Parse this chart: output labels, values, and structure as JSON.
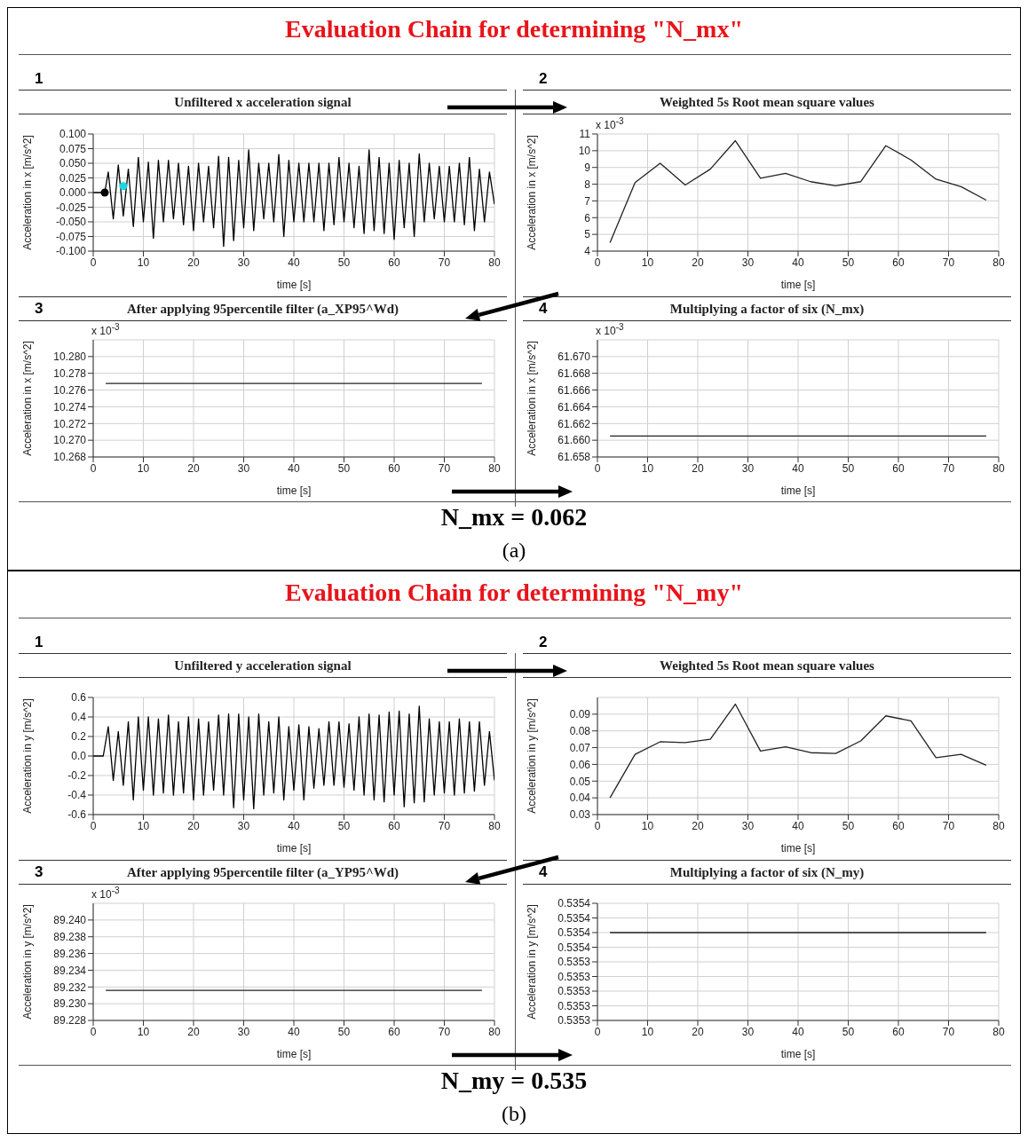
{
  "chart_data": [
    {
      "type": "line",
      "title": "Evaluation Chain for determining \"N_mx\"",
      "subtitle": "Unfiltered x acceleration signal",
      "xlabel": "time [s]",
      "ylabel": "Acceleration in x [m/s^2]",
      "annotations": [
        "1"
      ],
      "grid": true,
      "xlim": [
        0,
        80
      ],
      "xticks": [
        0,
        10,
        20,
        30,
        40,
        50,
        60,
        70,
        80
      ],
      "ylim": [
        -0.1,
        0.1
      ],
      "yticks": [
        {
          "value": -0.1,
          "label": "-0.100"
        },
        {
          "value": -0.075,
          "label": "-0.075"
        },
        {
          "value": -0.05,
          "label": "-0.050"
        },
        {
          "value": -0.025,
          "label": "-0.025"
        },
        {
          "value": 0,
          "label": "0.000"
        },
        {
          "value": 0.025,
          "label": "0.025"
        },
        {
          "value": 0.05,
          "label": "0.050"
        },
        {
          "value": 0.075,
          "label": "0.075"
        },
        {
          "value": 0.1,
          "label": "0.100"
        }
      ],
      "x": [
        0,
        2.3,
        3,
        4,
        5,
        6,
        7,
        8,
        9,
        10,
        11,
        12,
        13,
        14,
        15,
        16,
        17,
        18,
        19,
        20,
        21,
        22,
        23,
        24,
        25,
        26,
        27,
        28,
        29,
        30,
        31,
        32,
        33,
        34,
        35,
        36,
        37,
        38,
        39,
        40,
        41,
        42,
        43,
        44,
        45,
        46,
        47,
        48,
        49,
        50,
        51,
        52,
        53,
        54,
        55,
        56,
        57,
        58,
        59,
        60,
        61,
        62,
        63,
        64,
        65,
        66,
        67,
        68,
        69,
        70,
        71,
        72,
        73,
        74,
        75,
        76,
        77,
        78,
        79,
        80
      ],
      "series": [
        {
          "color": "#000000",
          "values": [
            0,
            0,
            0.035,
            -0.045,
            0.047,
            -0.04,
            0.04,
            -0.058,
            0.06,
            -0.05,
            0.052,
            -0.078,
            0.055,
            -0.05,
            0.055,
            -0.045,
            0.05,
            -0.055,
            0.045,
            -0.065,
            0.05,
            -0.05,
            0.045,
            -0.06,
            0.062,
            -0.092,
            0.06,
            -0.082,
            0.055,
            -0.06,
            0.073,
            -0.065,
            0.05,
            -0.045,
            0.05,
            -0.05,
            0.065,
            -0.075,
            0.055,
            -0.05,
            0.05,
            -0.05,
            0.05,
            -0.05,
            0.05,
            -0.065,
            0.05,
            -0.055,
            0.06,
            -0.05,
            0.05,
            -0.06,
            0.045,
            -0.07,
            0.073,
            -0.065,
            0.06,
            -0.07,
            0.05,
            -0.08,
            0.055,
            -0.06,
            0.05,
            -0.075,
            0.066,
            -0.05,
            0.05,
            -0.045,
            0.045,
            -0.05,
            0.045,
            -0.05,
            0.05,
            -0.055,
            0.06,
            -0.065,
            0.04,
            -0.05,
            0.035,
            -0.02
          ]
        },
        {
          "type": "scatter",
          "color": "#000000",
          "x": [
            2.3
          ],
          "values": [
            0
          ]
        },
        {
          "type": "scatter",
          "color": "#1ad8e0",
          "x": [
            6
          ],
          "values": [
            0.011
          ]
        }
      ]
    },
    {
      "type": "line",
      "subtitle": "Weighted 5s Root mean square values",
      "xlabel": "time [s]",
      "ylabel": "Acceleration in x [m/s^2]",
      "annotations": [
        "2",
        "x 10$^{-3}$"
      ],
      "grid": true,
      "xlim": [
        0,
        80
      ],
      "xticks": [
        0,
        10,
        20,
        30,
        40,
        50,
        60,
        70,
        80
      ],
      "ylim": [
        4,
        11
      ],
      "yticks": [
        4,
        5,
        6,
        7,
        8,
        9,
        10,
        11
      ],
      "x": [
        2.5,
        7.5,
        12.5,
        17.5,
        22.5,
        27.5,
        32.5,
        37.5,
        42.5,
        47.5,
        52.5,
        57.5,
        62.5,
        67.5,
        72.5,
        77.5
      ],
      "series": [
        {
          "color": "#222222",
          "values": [
            4.5,
            8.1,
            9.25,
            7.95,
            8.9,
            10.6,
            8.35,
            8.65,
            8.15,
            7.9,
            8.15,
            10.3,
            9.45,
            8.3,
            7.85,
            7.05
          ]
        }
      ]
    },
    {
      "type": "line",
      "subtitle": "After applying 95percentile filter (a_XP95^Wd)",
      "xlabel": "time [s]",
      "ylabel": "Acceleration in x [m/s^2]",
      "annotations": [
        "3",
        "x 10$^{-3}$",
        "N_mx = 0.062",
        "(a)"
      ],
      "grid": true,
      "xlim": [
        0,
        80
      ],
      "xticks": [
        0,
        10,
        20,
        30,
        40,
        50,
        60,
        70,
        80
      ],
      "ylim": [
        10.268,
        10.282
      ],
      "yticks": [
        {
          "value": 10.268,
          "label": "10.268"
        },
        {
          "value": 10.27,
          "label": "10.270"
        },
        {
          "value": 10.272,
          "label": "10.272"
        },
        {
          "value": 10.274,
          "label": "10.274"
        },
        {
          "value": 10.276,
          "label": "10.276"
        },
        {
          "value": 10.278,
          "label": "10.278"
        },
        {
          "value": 10.28,
          "label": "10.280"
        }
      ],
      "x": [
        2.5,
        77.5
      ],
      "series": [
        {
          "color": "#222222",
          "values": [
            10.2768,
            10.2768
          ]
        }
      ]
    },
    {
      "type": "line",
      "subtitle": "Multiplying a factor of six (N_mx)",
      "xlabel": "time [s]",
      "ylabel": "Acceleration in x [m/s^2]",
      "annotations": [
        "4",
        "x 10$^{-3}$"
      ],
      "grid": true,
      "xlim": [
        0,
        80
      ],
      "xticks": [
        0,
        10,
        20,
        30,
        40,
        50,
        60,
        70,
        80
      ],
      "ylim": [
        61.658,
        61.672
      ],
      "yticks": [
        {
          "value": 61.658,
          "label": "61.658"
        },
        {
          "value": 61.66,
          "label": "61.660"
        },
        {
          "value": 61.662,
          "label": "61.662"
        },
        {
          "value": 61.664,
          "label": "61.664"
        },
        {
          "value": 61.666,
          "label": "61.666"
        },
        {
          "value": 61.668,
          "label": "61.668"
        },
        {
          "value": 61.67,
          "label": "61.670"
        }
      ],
      "x": [
        2.5,
        77.5
      ],
      "series": [
        {
          "color": "#222222",
          "values": [
            61.6605,
            61.6605
          ]
        }
      ]
    },
    {
      "type": "line",
      "title": "Evaluation Chain for determining \"N_my\"",
      "subtitle": "Unfiltered y acceleration signal",
      "xlabel": "time [s]",
      "ylabel": "Acceleration in y [m/s^2]",
      "annotations": [
        "1"
      ],
      "grid": true,
      "xlim": [
        0,
        80
      ],
      "xticks": [
        0,
        10,
        20,
        30,
        40,
        50,
        60,
        70,
        80
      ],
      "ylim": [
        -0.6,
        0.6
      ],
      "yticks": [
        {
          "value": -0.6,
          "label": "-0.6"
        },
        {
          "value": -0.4,
          "label": "-0.4"
        },
        {
          "value": -0.2,
          "label": "-0.2"
        },
        {
          "value": 0,
          "label": "0.0"
        },
        {
          "value": 0.2,
          "label": "0.2"
        },
        {
          "value": 0.4,
          "label": "0.4"
        },
        {
          "value": 0.6,
          "label": "0.6"
        }
      ],
      "x": [
        0,
        2,
        3,
        4,
        5,
        6,
        7,
        8,
        9,
        10,
        11,
        12,
        13,
        14,
        15,
        16,
        17,
        18,
        19,
        20,
        21,
        22,
        23,
        24,
        25,
        26,
        27,
        28,
        29,
        30,
        31,
        32,
        33,
        34,
        35,
        36,
        37,
        38,
        39,
        40,
        41,
        42,
        43,
        44,
        45,
        46,
        47,
        48,
        49,
        50,
        51,
        52,
        53,
        54,
        55,
        56,
        57,
        58,
        59,
        60,
        61,
        62,
        63,
        64,
        65,
        66,
        67,
        68,
        69,
        70,
        71,
        72,
        73,
        74,
        75,
        76,
        77,
        78,
        79,
        80
      ],
      "series": [
        {
          "color": "#000000",
          "values": [
            0,
            0,
            0.3,
            -0.25,
            0.25,
            -0.3,
            0.35,
            -0.45,
            0.4,
            -0.35,
            0.4,
            -0.4,
            0.38,
            -0.38,
            0.42,
            -0.4,
            0.35,
            -0.38,
            0.4,
            -0.45,
            0.38,
            -0.4,
            0.35,
            -0.35,
            0.42,
            -0.4,
            0.43,
            -0.53,
            0.43,
            -0.45,
            0.4,
            -0.54,
            0.43,
            -0.4,
            0.35,
            -0.38,
            0.4,
            -0.45,
            0.3,
            -0.35,
            0.32,
            -0.45,
            0.3,
            -0.33,
            0.28,
            -0.3,
            0.35,
            -0.3,
            0.35,
            -0.32,
            0.33,
            -0.35,
            0.4,
            -0.4,
            0.43,
            -0.45,
            0.42,
            -0.47,
            0.45,
            -0.4,
            0.46,
            -0.52,
            0.43,
            -0.48,
            0.51,
            -0.47,
            0.38,
            -0.4,
            0.35,
            -0.38,
            0.35,
            -0.4,
            0.38,
            -0.38,
            0.35,
            -0.36,
            0.35,
            -0.3,
            0.25,
            -0.25
          ]
        }
      ]
    },
    {
      "type": "line",
      "subtitle": "Weighted 5s Root mean square values",
      "xlabel": "time [s]",
      "ylabel": "Acceleration in y [m/s^2]",
      "annotations": [
        "2"
      ],
      "grid": true,
      "xlim": [
        0,
        80
      ],
      "xticks": [
        0,
        10,
        20,
        30,
        40,
        50,
        60,
        70,
        80
      ],
      "ylim": [
        0.03,
        0.1
      ],
      "yticks": [
        0.03,
        0.04,
        0.05,
        0.06,
        0.07,
        0.08,
        0.09
      ],
      "x": [
        2.5,
        7.5,
        12.5,
        17.5,
        22.5,
        27.5,
        32.5,
        37.5,
        42.5,
        47.5,
        52.5,
        57.5,
        62.5,
        67.5,
        72.5,
        77.5
      ],
      "series": [
        {
          "color": "#222222",
          "values": [
            0.04,
            0.066,
            0.0735,
            0.073,
            0.075,
            0.096,
            0.068,
            0.0705,
            0.067,
            0.0665,
            0.074,
            0.089,
            0.086,
            0.064,
            0.066,
            0.0595
          ]
        }
      ]
    },
    {
      "type": "line",
      "subtitle": "After applying 95percentile filter (a_YP95^Wd)",
      "xlabel": "time [s]",
      "ylabel": "Acceleration in y [m/s^2]",
      "annotations": [
        "3",
        "x 10$^{-3}$",
        "N_my = 0.535",
        "(b)"
      ],
      "grid": true,
      "xlim": [
        0,
        80
      ],
      "xticks": [
        0,
        10,
        20,
        30,
        40,
        50,
        60,
        70,
        80
      ],
      "ylim": [
        89.228,
        89.242
      ],
      "yticks": [
        {
          "value": 89.228,
          "label": "89.228"
        },
        {
          "value": 89.23,
          "label": "89.230"
        },
        {
          "value": 89.232,
          "label": "89.232"
        },
        {
          "value": 89.234,
          "label": "89.234"
        },
        {
          "value": 89.236,
          "label": "89.236"
        },
        {
          "value": 89.238,
          "label": "89.238"
        },
        {
          "value": 89.24,
          "label": "89.240"
        }
      ],
      "x": [
        2.5,
        77.5
      ],
      "series": [
        {
          "color": "#222222",
          "values": [
            89.2316,
            89.2316
          ]
        }
      ]
    },
    {
      "type": "line",
      "subtitle": "Multiplying a factor of six (N_my)",
      "xlabel": "time [s]",
      "ylabel": "Acceleration in y [m/s^2]",
      "annotations": [
        "4"
      ],
      "grid": true,
      "xlim": [
        0,
        80
      ],
      "xticks": [
        0,
        10,
        20,
        30,
        40,
        50,
        60,
        70,
        80
      ],
      "ylim": [
        0.5353,
        0.53538
      ],
      "yticks": [
        {
          "value": 0.5353,
          "label": "0.5353"
        },
        {
          "value": 0.53531,
          "label": "0.5353"
        },
        {
          "value": 0.53532,
          "label": "0.5353"
        },
        {
          "value": 0.53533,
          "label": "0.5353"
        },
        {
          "value": 0.53534,
          "label": "0.5353"
        },
        {
          "value": 0.53535,
          "label": "0.5354"
        },
        {
          "value": 0.53536,
          "label": "0.5354"
        },
        {
          "value": 0.53537,
          "label": "0.5354"
        },
        {
          "value": 0.53538,
          "label": "0.5354"
        }
      ],
      "x": [
        2.5,
        77.5
      ],
      "series": [
        {
          "color": "#222222",
          "values": [
            0.53536,
            0.53536
          ]
        }
      ]
    }
  ]
}
